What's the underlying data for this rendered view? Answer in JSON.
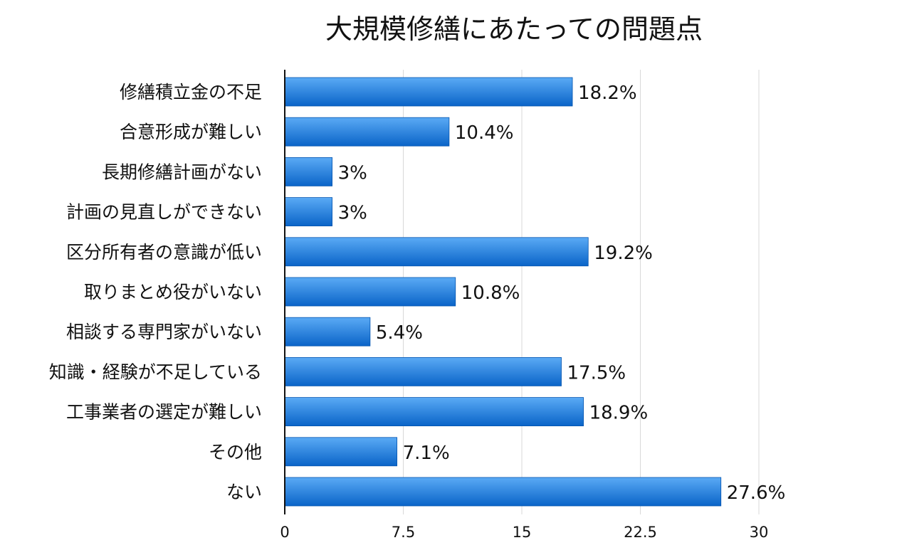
{
  "chart_data": {
    "type": "bar",
    "orientation": "horizontal",
    "title": "大規模修繕にあたっての問題点",
    "categories": [
      "修繕積立金の不足",
      "合意形成が難しい",
      "長期修繕計画がない",
      "計画の見直しができない",
      "区分所有者の意識が低い",
      "取りまとめ役がいない",
      "相談する専門家がいない",
      "知識・経験が不足している",
      "工事業者の選定が難しい",
      "その他",
      "ない"
    ],
    "values": [
      18.2,
      10.4,
      3,
      3,
      19.2,
      10.8,
      5.4,
      17.5,
      18.9,
      7.1,
      27.6
    ],
    "value_labels": [
      "18.2%",
      "10.4%",
      "3%",
      "3%",
      "19.2%",
      "10.8%",
      "5.4%",
      "17.5%",
      "18.9%",
      "7.1%",
      "27.6%"
    ],
    "xlim": [
      0,
      30
    ],
    "xticks": [
      0,
      7.5,
      15,
      22.5,
      30
    ],
    "xtick_labels": [
      "0",
      "7.5",
      "15",
      "22.5",
      "30"
    ],
    "grid": "vertical",
    "legend": "none",
    "colors": {
      "bar_top": "#5aaaf5",
      "bar_bottom": "#0a64c8",
      "bar_edge": "#0555b0"
    }
  }
}
